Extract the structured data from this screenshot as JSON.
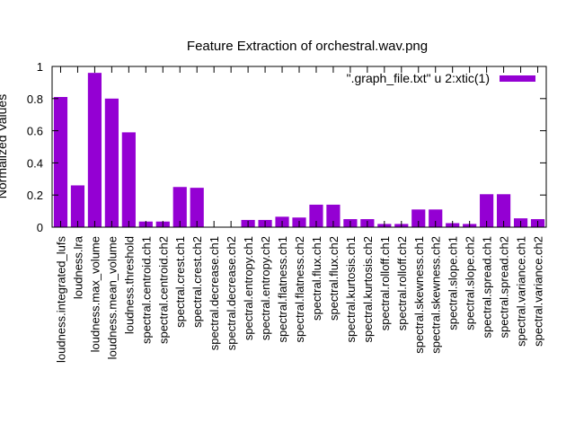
{
  "chart_data": {
    "type": "bar",
    "title": "Feature Extraction of orchestral.wav.png",
    "xlabel": "",
    "ylabel": "Normalized Values",
    "ylim": [
      0,
      1
    ],
    "yticks": [
      "0",
      "0.2",
      "0.4",
      "0.6",
      "0.8",
      "1"
    ],
    "legend_position": "top-right",
    "grid": false,
    "series": [
      {
        "name": "\".graph_file.txt\" u 2:xtic(1)",
        "color": "#9400d3",
        "values": [
          0.81,
          0.26,
          0.96,
          0.8,
          0.59,
          0.035,
          0.035,
          0.25,
          0.245,
          0.0,
          0.0,
          0.045,
          0.045,
          0.065,
          0.06,
          0.14,
          0.14,
          0.05,
          0.05,
          0.02,
          0.02,
          0.11,
          0.11,
          0.025,
          0.02,
          0.205,
          0.205,
          0.055,
          0.05
        ]
      }
    ],
    "categories": [
      "loudness.integrated_lufs",
      "loudness.lra",
      "loudness.max_volume",
      "loudness.mean_volume",
      "loudness.threshold",
      "spectral.centroid.ch1",
      "spectral.centroid.ch2",
      "spectral.crest.ch1",
      "spectral.crest.ch2",
      "spectral.decrease.ch1",
      "spectral.decrease.ch2",
      "spectral.entropy.ch1",
      "spectral.entropy.ch2",
      "spectral.flatness.ch1",
      "spectral.flatness.ch2",
      "spectral.flux.ch1",
      "spectral.flux.ch2",
      "spectral.kurtosis.ch1",
      "spectral.kurtosis.ch2",
      "spectral.rolloff.ch1",
      "spectral.rolloff.ch2",
      "spectral.skewness.ch1",
      "spectral.skewness.ch2",
      "spectral.slope.ch1",
      "spectral.slope.ch2",
      "spectral.spread.ch1",
      "spectral.spread.ch2",
      "spectral.variance.ch1",
      "spectral.variance.ch2"
    ]
  }
}
